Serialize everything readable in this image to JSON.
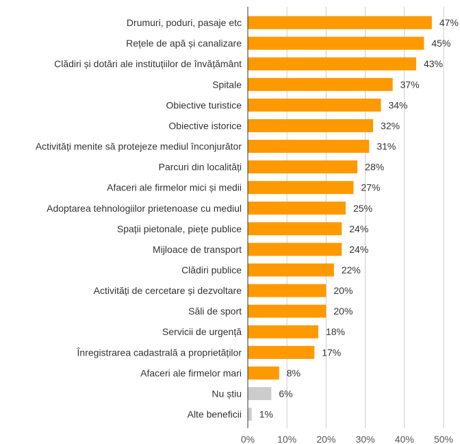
{
  "chart_data": {
    "type": "bar",
    "orientation": "horizontal",
    "categories": [
      "Drumuri, poduri, pasaje etc",
      "Rețele de apă și canalizare",
      "Clădiri și dotări ale instituțiilor de învățământ",
      "Spitale",
      "Obiective turistice",
      "Obiective istorice",
      "Activități menite să protejeze mediul înconjurător",
      "Parcuri din localități",
      "Afaceri ale firmelor mici și medii",
      "Adoptarea tehnologiilor prietenoase cu mediul",
      "Spații pietonale, piețe publice",
      "Mijloace de transport",
      "Clădiri publice",
      "Activități de cercetare și dezvoltare",
      "Săli de sport",
      "Servicii de urgență",
      "Înregistrarea cadastrală a proprietăților",
      "Afaceri ale firmelor mari",
      "Nu știu",
      "Alte beneficii"
    ],
    "values": [
      47,
      45,
      43,
      37,
      34,
      32,
      31,
      28,
      27,
      25,
      24,
      24,
      22,
      20,
      20,
      18,
      17,
      8,
      6,
      1
    ],
    "value_labels": [
      "47%",
      "45%",
      "43%",
      "37%",
      "34%",
      "32%",
      "31%",
      "28%",
      "27%",
      "25%",
      "24%",
      "24%",
      "22%",
      "20%",
      "20%",
      "18%",
      "17%",
      "8%",
      "6%",
      "1%"
    ],
    "bar_colors": [
      "#FF9900",
      "#FF9900",
      "#FF9900",
      "#FF9900",
      "#FF9900",
      "#FF9900",
      "#FF9900",
      "#FF9900",
      "#FF9900",
      "#FF9900",
      "#FF9900",
      "#FF9900",
      "#FF9900",
      "#FF9900",
      "#FF9900",
      "#FF9900",
      "#FF9900",
      "#FF9900",
      "#CCCCCC",
      "#CCCCCC"
    ],
    "x_ticks": [
      "0%",
      "10%",
      "20%",
      "30%",
      "40%",
      "50%"
    ],
    "xlim": [
      0,
      50
    ],
    "grid": true,
    "title": "",
    "xlabel": "",
    "ylabel": ""
  }
}
